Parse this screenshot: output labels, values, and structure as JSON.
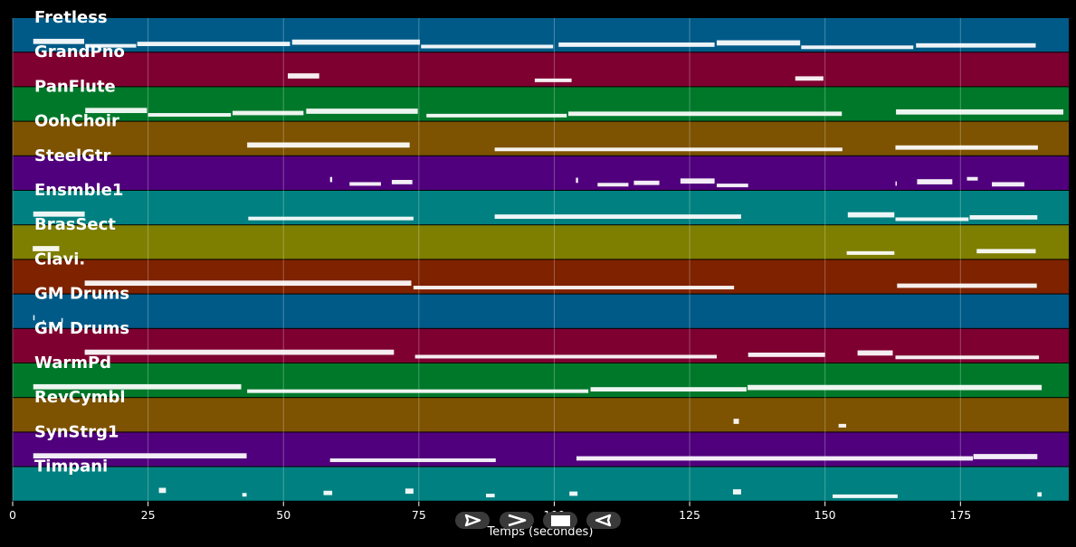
{
  "chart_data": {
    "type": "piano-roll",
    "title": "",
    "xlabel": "Temps (secondes)",
    "ylabel": "",
    "xlim": [
      0,
      195
    ],
    "xticks": [
      0,
      25,
      50,
      75,
      100,
      125,
      150,
      175
    ],
    "grid": true,
    "tracks": [
      {
        "name": "Fretless",
        "color": "#005a87",
        "notes": [
          [
            3.8,
            13.2
          ],
          [
            13.4,
            22.8
          ],
          [
            23,
            51.2
          ],
          [
            51.6,
            75.2
          ],
          [
            75.4,
            99.8
          ],
          [
            100.8,
            129.6
          ],
          [
            130,
            145.4
          ],
          [
            145.6,
            166.3
          ],
          [
            166.8,
            188.9
          ]
        ]
      },
      {
        "name": "GrandPno",
        "color": "#7e0030",
        "notes": [
          [
            50.8,
            56.6
          ],
          [
            96.4,
            103.2
          ],
          [
            144.5,
            149.7
          ]
        ]
      },
      {
        "name": "PanFlute",
        "color": "#00782a",
        "notes": [
          [
            13.4,
            24.8
          ],
          [
            25,
            40.3
          ],
          [
            40.6,
            53.7
          ],
          [
            54.2,
            74.8
          ],
          [
            76.4,
            102.3
          ],
          [
            102.6,
            153.1
          ],
          [
            163.1,
            194
          ]
        ]
      },
      {
        "name": "OohChoir",
        "color": "#7d5200",
        "notes": [
          [
            43.3,
            73.3
          ],
          [
            89,
            153.2
          ],
          [
            163,
            189.3
          ]
        ]
      },
      {
        "name": "SteelGtr",
        "color": "#50007c",
        "notes": [
          [
            58.6,
            59
          ],
          [
            62.2,
            68
          ],
          [
            70,
            73.8
          ],
          [
            104,
            104.4
          ],
          [
            108,
            113.7
          ],
          [
            114.7,
            119.4
          ],
          [
            123.3,
            129.6
          ],
          [
            130,
            135.8
          ],
          [
            163,
            163.2
          ],
          [
            167,
            173.5
          ],
          [
            176.2,
            178.2
          ],
          [
            180.8,
            186.8
          ]
        ]
      },
      {
        "name": "Ensmble1",
        "color": "#008080",
        "notes": [
          [
            3.8,
            13.3
          ],
          [
            43.5,
            74
          ],
          [
            89,
            134.5
          ],
          [
            154.2,
            162.8
          ],
          [
            163,
            176.5
          ],
          [
            176.7,
            189.2
          ]
        ]
      },
      {
        "name": "BrasSect",
        "color": "#7e7e00",
        "notes": [
          [
            3.7,
            8.6
          ],
          [
            154,
            162.8
          ],
          [
            178,
            188.9
          ]
        ]
      },
      {
        "name": "Clavi.",
        "color": "#7e2200",
        "notes": [
          [
            13.3,
            73.6
          ],
          [
            74,
            133.2
          ],
          [
            163.3,
            189.1
          ]
        ]
      },
      {
        "name": "GM Drums",
        "color": "#005a87",
        "notes": [
          [
            3.8,
            4
          ],
          [
            5.6,
            5.8
          ],
          [
            9,
            9.2
          ]
        ]
      },
      {
        "name": "GM Drums",
        "color": "#7e0030",
        "notes": [
          [
            13.3,
            70.4
          ],
          [
            74.3,
            130
          ],
          [
            135.8,
            150
          ],
          [
            156,
            162.5
          ],
          [
            163,
            189.5
          ]
        ]
      },
      {
        "name": "WarmPd",
        "color": "#00782a",
        "notes": [
          [
            3.8,
            42.2
          ],
          [
            43.3,
            106.3
          ],
          [
            106.7,
            135.5
          ],
          [
            135.7,
            190
          ]
        ]
      },
      {
        "name": "RevCymbl",
        "color": "#7d5200",
        "notes": [
          [
            133.1,
            134.1
          ],
          [
            152.5,
            153.9
          ]
        ]
      },
      {
        "name": "SynStrg1",
        "color": "#50007c",
        "notes": [
          [
            3.8,
            43.2
          ],
          [
            58.6,
            89.2
          ],
          [
            104.1,
            177.3
          ],
          [
            177.4,
            189.2
          ]
        ]
      },
      {
        "name": "Timpani",
        "color": "#008080",
        "notes": [
          [
            27,
            28.3
          ],
          [
            42.4,
            43.2
          ],
          [
            57.4,
            59
          ],
          [
            72.5,
            74
          ],
          [
            87.4,
            89
          ],
          [
            102.8,
            104.3
          ],
          [
            133,
            134.5
          ],
          [
            151.4,
            163.4
          ],
          [
            189.2,
            190
          ]
        ]
      }
    ]
  },
  "controls": [
    {
      "name": "play-button",
      "icon": "play-outline-icon"
    },
    {
      "name": "next-button",
      "icon": "chevron-right-icon"
    },
    {
      "name": "stop-button",
      "icon": "stop-square-icon"
    },
    {
      "name": "rewind-button",
      "icon": "triangle-left-outline-icon"
    }
  ]
}
